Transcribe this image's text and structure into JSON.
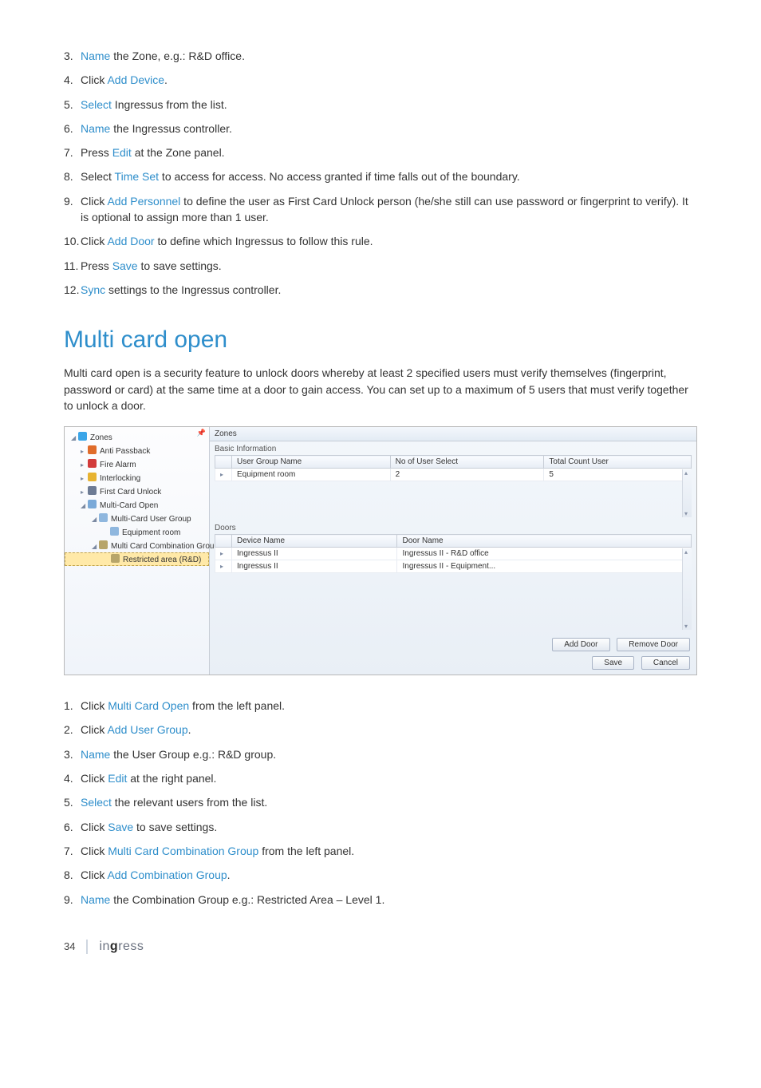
{
  "steps1": [
    {
      "n": "3.",
      "parts": [
        {
          "hl": true,
          "t": "Name"
        },
        {
          "t": " the Zone, e.g.: R&D office."
        }
      ]
    },
    {
      "n": "4.",
      "parts": [
        {
          "t": "Click "
        },
        {
          "hl": true,
          "t": "Add Device"
        },
        {
          "t": "."
        }
      ]
    },
    {
      "n": "5.",
      "parts": [
        {
          "hl": true,
          "t": "Select"
        },
        {
          "t": " Ingressus from the list."
        }
      ]
    },
    {
      "n": "6.",
      "parts": [
        {
          "hl": true,
          "t": "Name"
        },
        {
          "t": " the Ingressus controller."
        }
      ]
    },
    {
      "n": "7.",
      "parts": [
        {
          "t": "Press "
        },
        {
          "hl": true,
          "t": "Edit"
        },
        {
          "t": " at the Zone panel."
        }
      ]
    },
    {
      "n": "8.",
      "parts": [
        {
          "t": "Select "
        },
        {
          "hl": true,
          "t": "Time Set"
        },
        {
          "t": " to access for access. No access granted if time falls out of the boundary."
        }
      ]
    },
    {
      "n": "9.",
      "parts": [
        {
          "t": "Click "
        },
        {
          "hl": true,
          "t": "Add Personnel"
        },
        {
          "t": " to define the user as First Card Unlock person (he/she still can use password or fingerprint to verify). It is optional to assign more than 1 user."
        }
      ]
    },
    {
      "n": "10.",
      "parts": [
        {
          "t": "Click "
        },
        {
          "hl": true,
          "t": "Add Door"
        },
        {
          "t": " to define which Ingressus to follow this rule."
        }
      ]
    },
    {
      "n": "11.",
      "parts": [
        {
          "t": "Press "
        },
        {
          "hl": true,
          "t": "Save"
        },
        {
          "t": " to save settings."
        }
      ]
    },
    {
      "n": "12.",
      "parts": [
        {
          "hl": true,
          "t": "Sync"
        },
        {
          "t": " settings to the Ingressus controller."
        }
      ]
    }
  ],
  "section_title": "Multi card open",
  "intro": "Multi card open is a security feature to unlock doors whereby at least 2 specified users must verify themselves (fingerprint, password or card) at the same time at a door to gain access. You can set up to a maximum of 5 users that must verify together to unlock a door.",
  "scr": {
    "right_header": "Zones",
    "tree": [
      {
        "lvl": 0,
        "arrow": "◢",
        "icon": "#3aa5e8",
        "label": "Zones"
      },
      {
        "lvl": 1,
        "arrow": "▸",
        "icon": "#e06c2b",
        "label": "Anti Passback"
      },
      {
        "lvl": 1,
        "arrow": "▸",
        "icon": "#d23b3b",
        "label": "Fire Alarm"
      },
      {
        "lvl": 1,
        "arrow": "▸",
        "icon": "#e7b331",
        "label": "Interlocking"
      },
      {
        "lvl": 1,
        "arrow": "▸",
        "icon": "#6d7b94",
        "label": "First Card Unlock"
      },
      {
        "lvl": 1,
        "arrow": "◢",
        "icon": "#7aa9d8",
        "label": "Multi-Card Open"
      },
      {
        "lvl": 2,
        "arrow": "◢",
        "icon": "#8fb7de",
        "label": "Multi-Card User Group"
      },
      {
        "lvl": 3,
        "arrow": "",
        "icon": "#8fb7de",
        "label": "Equipment room"
      },
      {
        "lvl": 2,
        "arrow": "◢",
        "icon": "#b7a56a",
        "label": "Multi Card Combination Group"
      },
      {
        "lvl": 3,
        "arrow": "",
        "icon": "#b7a56a",
        "label": "Restricted area (R&D)",
        "selected": true
      }
    ],
    "group1": {
      "title": "Basic Information",
      "cols": [
        "User Group Name",
        "No of User Select",
        "Total Count User"
      ],
      "rows": [
        [
          "Equipment room",
          "2",
          "5"
        ]
      ]
    },
    "group2": {
      "title": "Doors",
      "cols": [
        "Device Name",
        "Door Name"
      ],
      "rows": [
        [
          "Ingressus II",
          "Ingressus II - R&D office"
        ],
        [
          "Ingressus II",
          "Ingressus II - Equipment..."
        ]
      ]
    },
    "btns": {
      "add_door": "Add Door",
      "remove_door": "Remove Door",
      "save": "Save",
      "cancel": "Cancel"
    }
  },
  "steps2": [
    {
      "n": "1.",
      "parts": [
        {
          "t": "Click "
        },
        {
          "hl": true,
          "t": "Multi Card Open"
        },
        {
          "t": " from the left panel."
        }
      ]
    },
    {
      "n": "2.",
      "parts": [
        {
          "t": "Click "
        },
        {
          "hl": true,
          "t": "Add User Group"
        },
        {
          "t": "."
        }
      ]
    },
    {
      "n": "3.",
      "parts": [
        {
          "hl": true,
          "t": "Name"
        },
        {
          "t": " the User Group e.g.: R&D group."
        }
      ]
    },
    {
      "n": "4.",
      "parts": [
        {
          "t": "Click "
        },
        {
          "hl": true,
          "t": "Edit"
        },
        {
          "t": " at the right panel."
        }
      ]
    },
    {
      "n": "5.",
      "parts": [
        {
          "hl": true,
          "t": "Select"
        },
        {
          "t": " the relevant users from the list."
        }
      ]
    },
    {
      "n": "6.",
      "parts": [
        {
          "t": "Click "
        },
        {
          "hl": true,
          "t": "Save"
        },
        {
          "t": " to save settings."
        }
      ]
    },
    {
      "n": "7.",
      "parts": [
        {
          "t": "Click "
        },
        {
          "hl": true,
          "t": "Multi Card Combination Group"
        },
        {
          "t": " from the left panel."
        }
      ]
    },
    {
      "n": "8.",
      "parts": [
        {
          "t": "Click "
        },
        {
          "hl": true,
          "t": "Add Combination Group"
        },
        {
          "t": "."
        }
      ]
    },
    {
      "n": "9.",
      "parts": [
        {
          "hl": true,
          "t": "Name"
        },
        {
          "t": " the Combination Group e.g.: Restricted Area – Level 1."
        }
      ]
    }
  ],
  "footer": {
    "page": "34",
    "logo_pre": "in",
    "logo_mid": "g",
    "logo_post": "ress"
  }
}
